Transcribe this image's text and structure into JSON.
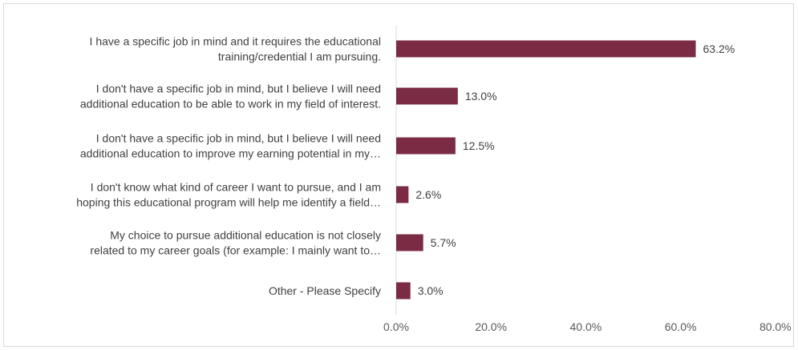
{
  "chart_data": {
    "type": "bar",
    "orientation": "horizontal",
    "categories": [
      [
        "I have a specific job in mind and it requires the educational",
        "training/credential I am pursuing."
      ],
      [
        "I don't have a specific job in mind, but I believe I will need",
        "additional education to be able to work in my field of interest."
      ],
      [
        "I don't have a specific job in mind, but I believe I will need",
        "additional education to improve my earning potential in my…"
      ],
      [
        "I don't know what kind of career I want to pursue, and I am",
        "hoping this educational program will help me identify a field…"
      ],
      [
        "My choice to pursue additional education is not closely",
        "related to my career goals (for example: I mainly want to…"
      ],
      [
        "Other - Please Specify"
      ]
    ],
    "values": [
      63.2,
      13.0,
      12.5,
      2.6,
      5.7,
      3.0
    ],
    "value_labels": [
      "63.2%",
      "13.0%",
      "12.5%",
      "2.6%",
      "5.7%",
      "3.0%"
    ],
    "xlim": [
      0,
      80
    ],
    "xticks": [
      0,
      20,
      40,
      60,
      80
    ],
    "xtick_labels": [
      "0.0%",
      "20.0%",
      "40.0%",
      "60.0%",
      "80.0%"
    ],
    "grid": false,
    "bar_color": "#7b2c44",
    "axis_color": "#d9d9d9"
  }
}
